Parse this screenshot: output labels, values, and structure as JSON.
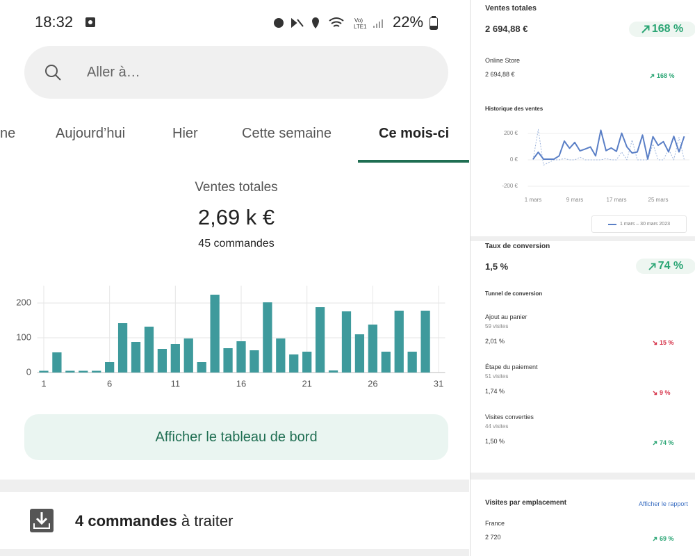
{
  "status_bar": {
    "time": "18:32",
    "battery": "22%"
  },
  "search": {
    "placeholder": "Aller à…"
  },
  "tabs": [
    "ne",
    "Aujourd’hui",
    "Hier",
    "Cette semaine",
    "Ce mois-ci"
  ],
  "active_tab": 4,
  "summary": {
    "title": "Ventes totales",
    "value": "2,69 k €",
    "orders": "45 commandes"
  },
  "dashboard_button": "Afficher le tableau de bord",
  "orders_to_process": {
    "count": "4 commandes",
    "text": "à traiter"
  },
  "report": {
    "total": {
      "title": "Ventes totales",
      "value": "2 694,88 €",
      "change": "168 %",
      "trend": "up"
    },
    "store": {
      "name": "Online Store",
      "value": "2 694,88 €",
      "change": "168 %",
      "trend": "up"
    },
    "conversion": {
      "title": "Taux de conversion",
      "value": "1,5 %",
      "change": "74 %",
      "trend": "up",
      "funnel_title": "Tunnel de conversion",
      "steps": [
        {
          "label": "Ajout au panier",
          "visits": "59 visites",
          "rate": "2,01 %",
          "change": "15 %",
          "trend": "down"
        },
        {
          "label": "Étape du paiement",
          "visits": "51 visites",
          "rate": "1,74 %",
          "change": "9 %",
          "trend": "down"
        },
        {
          "label": "Visites converties",
          "visits": "44 visites",
          "rate": "1,50 %",
          "change": "74 %",
          "trend": "up"
        }
      ]
    },
    "locations": {
      "title": "Visites par emplacement",
      "link": "Afficher le rapport",
      "rows": [
        {
          "name": "France",
          "value": "2 720",
          "change": "69 %",
          "trend": "up"
        }
      ]
    }
  },
  "chart_data": [
    {
      "type": "bar",
      "x": [
        1,
        2,
        3,
        4,
        5,
        6,
        7,
        8,
        9,
        10,
        11,
        12,
        13,
        14,
        15,
        16,
        17,
        18,
        19,
        20,
        21,
        22,
        23,
        24,
        25,
        26,
        27,
        28,
        29,
        30
      ],
      "values": [
        5,
        58,
        5,
        5,
        5,
        30,
        142,
        88,
        132,
        68,
        82,
        98,
        30,
        224,
        70,
        90,
        64,
        202,
        98,
        52,
        60,
        188,
        6,
        176,
        110,
        138,
        60,
        178,
        60,
        178
      ],
      "color": "#3e9a9c",
      "xlim": [
        0.5,
        31.5
      ],
      "xticks": [
        1,
        6,
        11,
        16,
        21,
        26,
        31
      ],
      "ylim": [
        0,
        250
      ],
      "yticks": [
        0,
        100,
        200
      ],
      "grid": "both"
    },
    {
      "type": "line",
      "title": "Historique des ventes",
      "x": [
        1,
        2,
        3,
        4,
        5,
        6,
        7,
        8,
        9,
        10,
        11,
        12,
        13,
        14,
        15,
        16,
        17,
        18,
        19,
        20,
        21,
        22,
        23,
        24,
        25,
        26,
        27,
        28,
        29,
        30
      ],
      "series": [
        {
          "name": "1 mars – 30 mars 2023",
          "color": "#5a7fc6",
          "line_style": "solid",
          "values": [
            5,
            58,
            5,
            5,
            5,
            30,
            142,
            88,
            132,
            68,
            82,
            98,
            30,
            224,
            70,
            90,
            64,
            202,
            98,
            52,
            60,
            188,
            6,
            176,
            110,
            138,
            60,
            178,
            60,
            178
          ]
        },
        {
          "color": "#9db4dc",
          "line_style": "dashed",
          "values": [
            0,
            230,
            -40,
            -20,
            0,
            0,
            10,
            0,
            0,
            20,
            0,
            0,
            0,
            0,
            10,
            0,
            0,
            60,
            0,
            150,
            0,
            0,
            0,
            120,
            0,
            0,
            80,
            0,
            170,
            0
          ]
        }
      ],
      "xlim": [
        0,
        31
      ],
      "xticks": [
        {
          "value": 1,
          "label": "1 mars"
        },
        {
          "value": 9,
          "label": "9 mars"
        },
        {
          "value": 17,
          "label": "17 mars"
        },
        {
          "value": 25,
          "label": "25 mars"
        }
      ],
      "ylim": [
        -220,
        260
      ],
      "yticks": [
        {
          "value": -200,
          "label": "-200 €"
        },
        {
          "value": 0,
          "label": "0 €"
        },
        {
          "value": 200,
          "label": "200 €"
        }
      ],
      "grid": "y"
    }
  ]
}
